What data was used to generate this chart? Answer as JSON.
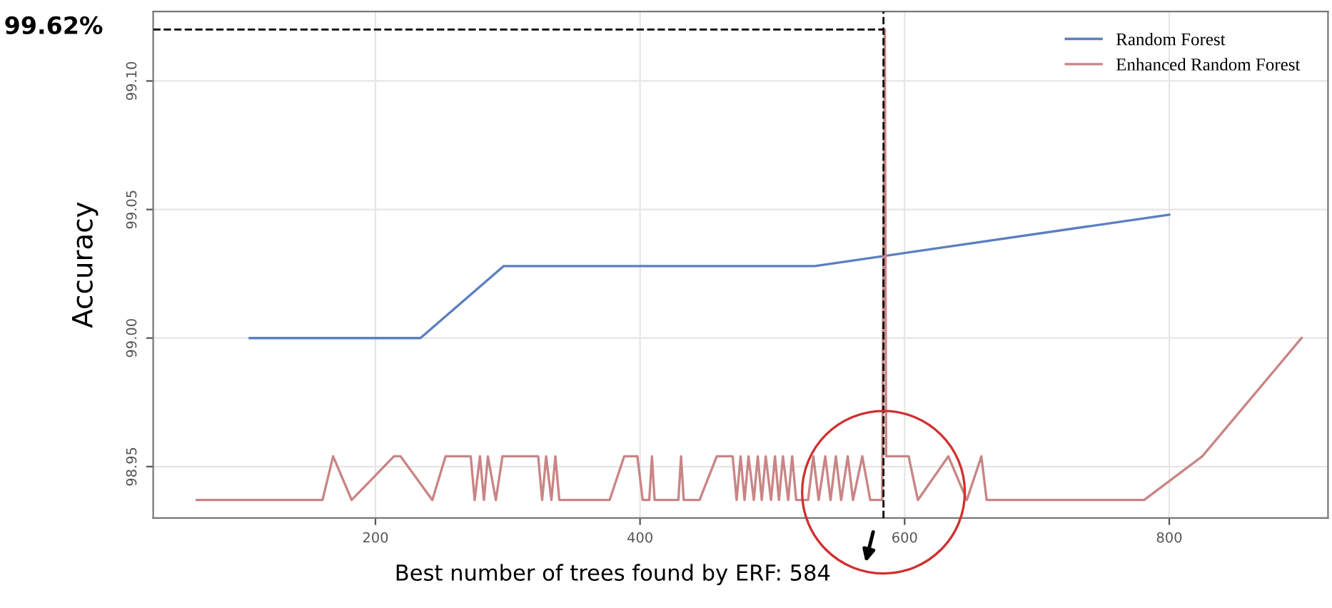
{
  "chart_data": {
    "type": "line",
    "ylabel": "Accuracy",
    "xlim": [
      32,
      920
    ],
    "xticks": [
      200,
      400,
      600,
      800
    ],
    "ylim": [
      98.93,
      99.127
    ],
    "yticks": [
      {
        "value": 98.95,
        "label": "98.95"
      },
      {
        "value": 99.0,
        "label": "99.00"
      },
      {
        "value": 99.05,
        "label": "99.05"
      },
      {
        "value": 99.1,
        "label": "99.10"
      }
    ],
    "grid": true,
    "legend": "top right",
    "line_style": "solid",
    "marker": "none",
    "series": [
      {
        "name": "Random Forest",
        "color": "#5b7fbf",
        "x": [
          105,
          234,
          297,
          532,
          800
        ],
        "values": [
          99.0,
          99.0,
          99.028,
          99.028,
          99.048
        ]
      },
      {
        "name": "Enhanced Random Forest",
        "color": "#c98585",
        "x": [
          65,
          160,
          168,
          182,
          214,
          219,
          243,
          253,
          272,
          275,
          279,
          282,
          285,
          291,
          296,
          323,
          326,
          329,
          333,
          336,
          339,
          377,
          388,
          398,
          402,
          407,
          409,
          411,
          429,
          431,
          433,
          445,
          458,
          470,
          473,
          476,
          479,
          482,
          486,
          489,
          492,
          495,
          499,
          502,
          505,
          508,
          512,
          515,
          518,
          527,
          531,
          535,
          540,
          544,
          548,
          552,
          557,
          561,
          568,
          574,
          583,
          585,
          586,
          603,
          610,
          633,
          647,
          658,
          662,
          781,
          825,
          900
        ],
        "values": [
          98.937,
          98.937,
          98.954,
          98.937,
          98.954,
          98.954,
          98.937,
          98.954,
          98.954,
          98.937,
          98.954,
          98.937,
          98.954,
          98.937,
          98.954,
          98.954,
          98.937,
          98.954,
          98.937,
          98.954,
          98.937,
          98.937,
          98.954,
          98.954,
          98.937,
          98.937,
          98.954,
          98.937,
          98.937,
          98.954,
          98.937,
          98.937,
          98.954,
          98.954,
          98.937,
          98.954,
          98.937,
          98.954,
          98.937,
          98.954,
          98.937,
          98.954,
          98.937,
          98.954,
          98.937,
          98.954,
          98.937,
          98.954,
          98.937,
          98.937,
          98.954,
          98.937,
          98.954,
          98.937,
          98.954,
          98.937,
          98.954,
          98.937,
          98.954,
          98.937,
          98.937,
          99.12,
          98.954,
          98.954,
          98.937,
          98.954,
          98.937,
          98.954,
          98.937,
          98.937,
          98.954,
          99.0
        ]
      }
    ],
    "ref_lines": [
      {
        "axis": "y",
        "value": 99.12,
        "color": "#000000",
        "line_style": "dashed"
      },
      {
        "axis": "x",
        "value": 584,
        "color": "#000000",
        "line_style": "dashed"
      }
    ],
    "annotations": [
      "99.62%",
      "Best number of trees found by ERF: 584"
    ]
  }
}
